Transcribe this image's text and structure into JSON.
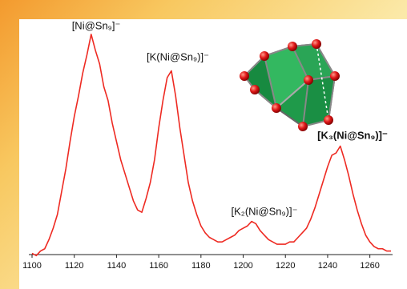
{
  "chart_data": {
    "type": "line",
    "x": [
      1100,
      1102,
      1104,
      1106,
      1108,
      1110,
      1112,
      1114,
      1116,
      1118,
      1120,
      1122,
      1124,
      1126,
      1128,
      1130,
      1132,
      1134,
      1136,
      1138,
      1140,
      1142,
      1144,
      1146,
      1148,
      1150,
      1152,
      1154,
      1156,
      1158,
      1160,
      1162,
      1164,
      1166,
      1168,
      1170,
      1172,
      1174,
      1176,
      1178,
      1180,
      1182,
      1184,
      1186,
      1188,
      1190,
      1192,
      1194,
      1196,
      1198,
      1200,
      1202,
      1204,
      1206,
      1208,
      1210,
      1212,
      1214,
      1216,
      1218,
      1220,
      1222,
      1224,
      1226,
      1228,
      1230,
      1232,
      1234,
      1236,
      1238,
      1240,
      1242,
      1244,
      1246,
      1248,
      1250,
      1252,
      1254,
      1256,
      1258,
      1260,
      1262,
      1264,
      1266,
      1268,
      1270
    ],
    "values": [
      3,
      2,
      4,
      5,
      9,
      14,
      20,
      30,
      40,
      52,
      63,
      72,
      82,
      90,
      99,
      92,
      86,
      76,
      70,
      60,
      52,
      44,
      38,
      32,
      26,
      22,
      21,
      27,
      34,
      44,
      58,
      70,
      80,
      83,
      72,
      58,
      46,
      34,
      26,
      20,
      15,
      12,
      10,
      9,
      8,
      8,
      9,
      10,
      11,
      13,
      14,
      15,
      17,
      16,
      13,
      11,
      9,
      8,
      7,
      7,
      7,
      8,
      8,
      10,
      12,
      14,
      18,
      23,
      29,
      35,
      41,
      46,
      47,
      50,
      44,
      37,
      29,
      22,
      16,
      11,
      8,
      6,
      5,
      5,
      4,
      4
    ],
    "color": "#ee2a22",
    "xlim": [
      1100,
      1270
    ],
    "xticks": [
      1100,
      1120,
      1140,
      1160,
      1180,
      1200,
      1220,
      1240,
      1260
    ],
    "ylim": [
      0,
      100
    ],
    "annotations": [
      "[Ni@Sn₉]⁻",
      "[K(Ni@Sn₉)]⁻",
      "[K₂(Ni@Sn₉)]⁻",
      "[K₃(Ni@Sn₉)]⁻"
    ]
  }
}
